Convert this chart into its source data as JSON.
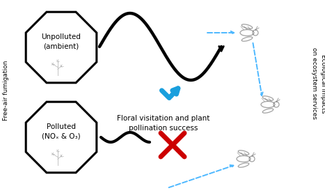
{
  "title": "",
  "left_label": "Free-air fumigation",
  "right_label": "Ecological impacts\non ecosystem services",
  "box1_label": "Unpolluted\n(ambient)",
  "box2_label": "Polluted\n(NOₓ & O₃)",
  "center_label": "Floral visitation and plant\npollination success",
  "bg_color": "#ffffff",
  "box_color": "#000000",
  "line_color": "#000000",
  "dashed_color": "#4db8ff",
  "check_color": "#1a9fdd",
  "cross_color": "#cc0000",
  "font_size": 7.5,
  "small_font": 6.5
}
